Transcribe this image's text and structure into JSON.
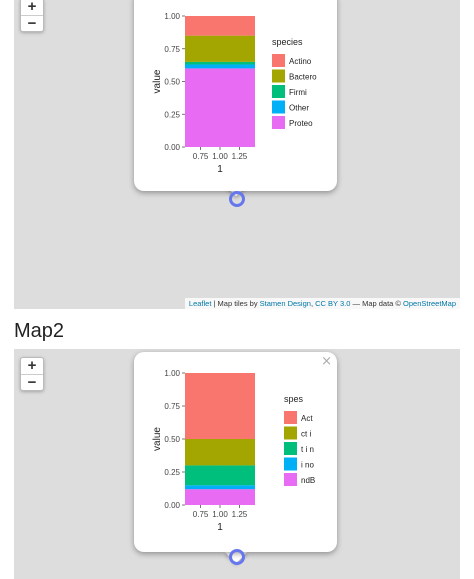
{
  "maps": [
    {
      "zoom": {
        "in_label": "+",
        "out_label": "−"
      },
      "popup": {
        "close_label": ""
      },
      "attribution": {
        "leaflet": "Leaflet",
        "sep1": " | Map tiles by ",
        "stamen": "Stamen Design",
        "sep2": ", ",
        "license": "CC BY 3.0",
        "sep3": " — Map data © ",
        "osm": "OpenStreetMap"
      },
      "chart_data": {
        "type": "bar",
        "stacked": true,
        "xlabel": "1",
        "ylabel": "value",
        "ylim": [
          0,
          1
        ],
        "xlim": [
          0.55,
          1.45
        ],
        "y_ticks": [
          "0.00",
          "0.25",
          "0.50",
          "0.75",
          "1.00"
        ],
        "x_ticks": [
          "0.75",
          "1.00",
          "1.25"
        ],
        "legend_title": "species",
        "legend_position": "right",
        "series": [
          {
            "name": "Actino",
            "color": "#F8766D",
            "value": 0.15
          },
          {
            "name": "Bactero",
            "color": "#A3A500",
            "value": 0.2
          },
          {
            "name": "Firmi",
            "color": "#00BF7D",
            "value": 0.02
          },
          {
            "name": "Other",
            "color": "#00B0F6",
            "value": 0.03
          },
          {
            "name": "Proteo",
            "color": "#E76BF3",
            "value": 0.6
          }
        ]
      }
    },
    {
      "zoom": {
        "in_label": "+",
        "out_label": "−"
      },
      "popup": {
        "close_label": "×"
      },
      "chart_data": {
        "type": "bar",
        "stacked": true,
        "xlabel": "1",
        "ylabel": "value",
        "ylim": [
          0,
          1
        ],
        "xlim": [
          0.55,
          1.45
        ],
        "y_ticks": [
          "0.00",
          "0.25",
          "0.50",
          "0.75",
          "1.00"
        ],
        "x_ticks": [
          "0.75",
          "1.00",
          "1.25"
        ],
        "legend_title": "spes",
        "legend_position": "right",
        "series": [
          {
            "name": "Act",
            "color": "#F8766D",
            "value": 0.5
          },
          {
            "name": "ct i",
            "color": "#A3A500",
            "value": 0.2
          },
          {
            "name": "t i n",
            "color": "#00BF7D",
            "value": 0.15
          },
          {
            "name": "i no",
            "color": "#00B0F6",
            "value": 0.03
          },
          {
            "name": "ndB",
            "color": "#E76BF3",
            "value": 0.12
          }
        ]
      }
    }
  ],
  "map2_title": "Map2"
}
